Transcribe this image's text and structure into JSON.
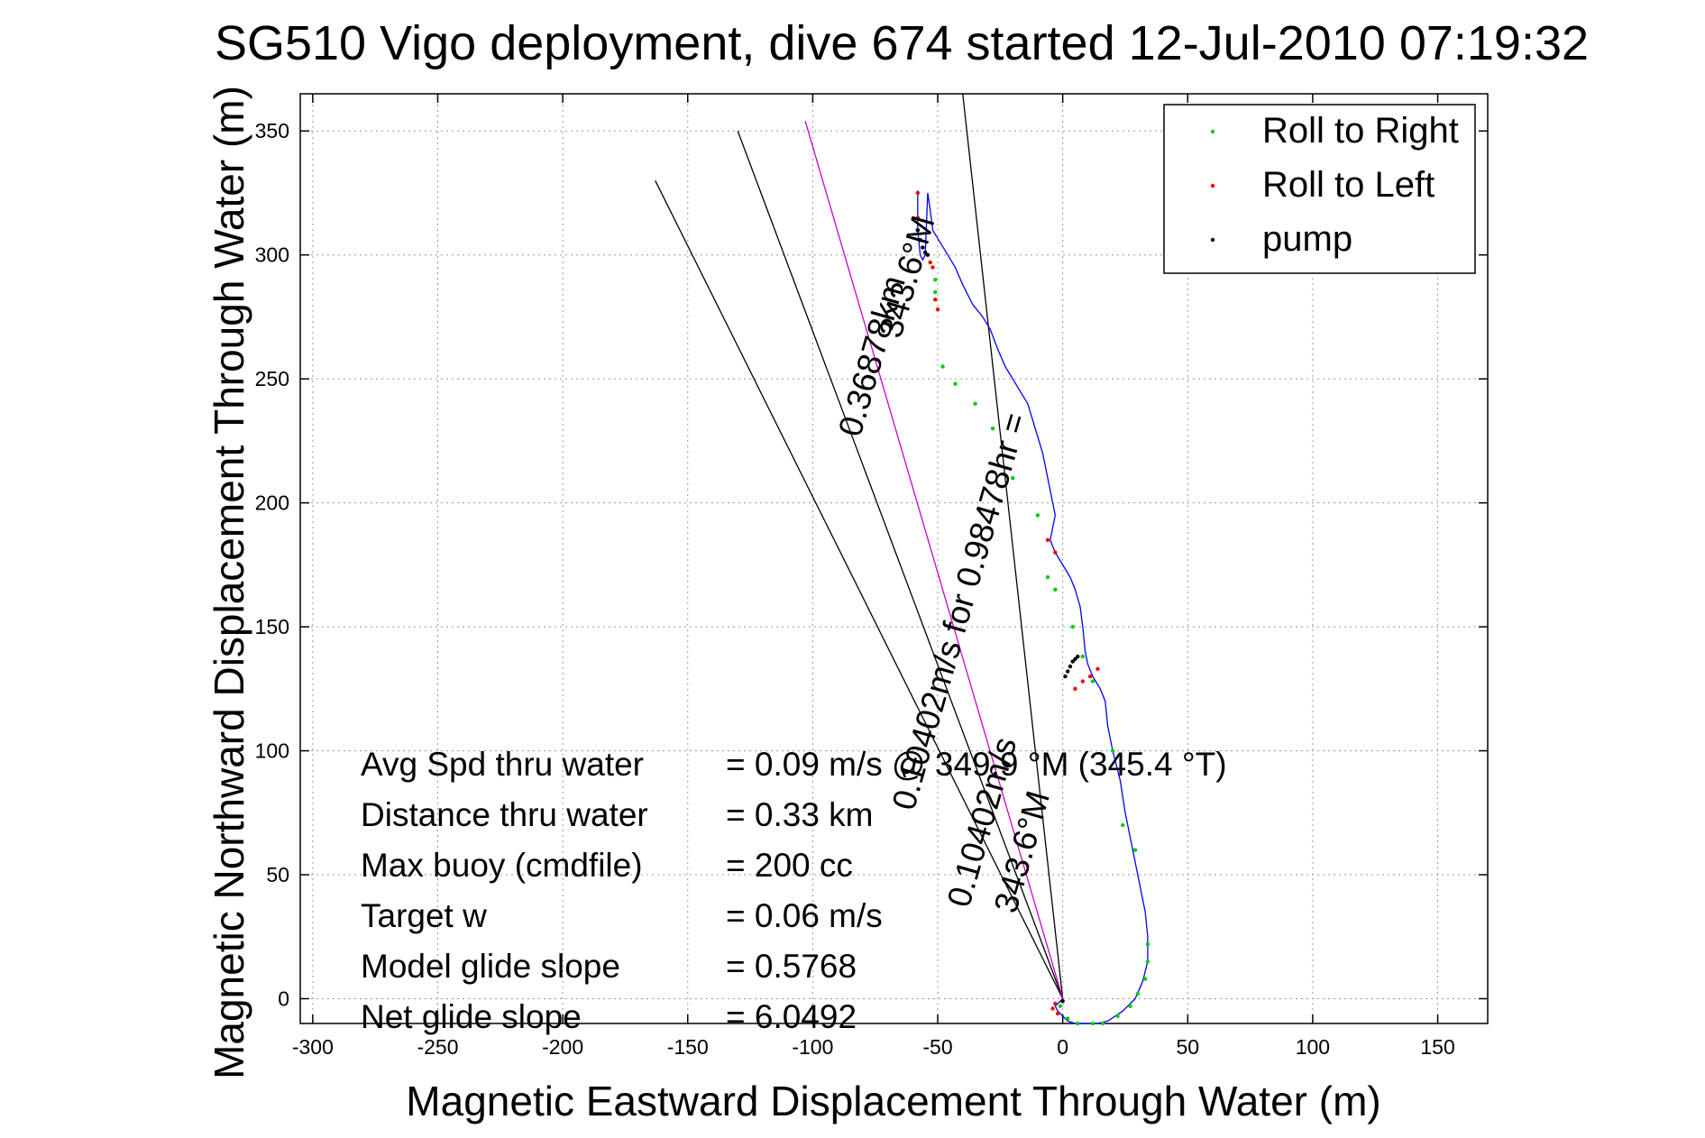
{
  "chart_data": {
    "type": "line",
    "title": "SG510 Vigo deployment, dive 674 started 12-Jul-2010 07:19:32",
    "xlabel": "Magnetic Eastward Displacement Through Water (m)",
    "ylabel": "Magnetic Northward Displacement Through Water (m)",
    "xlim": [
      -305,
      170
    ],
    "ylim": [
      -10,
      365
    ],
    "xticks": [
      -300,
      -250,
      -200,
      -150,
      -100,
      -50,
      0,
      50,
      100,
      150
    ],
    "yticks": [
      0,
      50,
      100,
      150,
      200,
      250,
      300,
      350
    ],
    "grid": true,
    "legend_position": "top-right",
    "legend": [
      {
        "label": "Roll to Right",
        "color": "#00cc00"
      },
      {
        "label": "Roll to Left",
        "color": "#ff0000"
      },
      {
        "label": "pump",
        "color": "#000000"
      }
    ],
    "track": {
      "color": "#0000ff",
      "x": [
        0,
        -3,
        -2,
        0,
        2,
        5,
        10,
        14,
        18,
        24,
        29,
        32,
        34,
        34,
        33,
        31,
        29,
        27,
        25,
        23,
        20,
        18,
        17,
        15,
        12,
        10,
        9,
        8,
        7,
        5,
        3,
        0,
        -3,
        -5,
        -4,
        -3,
        -4,
        -6,
        -8,
        -11,
        -14,
        -17,
        -20,
        -23,
        -26,
        -29,
        -32,
        -36,
        -40,
        -43,
        -46,
        -49,
        -52,
        -53,
        -54,
        -55,
        -56,
        -57,
        -58,
        -58,
        -58
      ],
      "y": [
        0,
        -3,
        -5,
        -7,
        -9,
        -10,
        -10,
        -10,
        -9,
        -5,
        0,
        7,
        15,
        25,
        35,
        45,
        55,
        65,
        75,
        88,
        100,
        110,
        120,
        125,
        130,
        135,
        140,
        150,
        158,
        165,
        170,
        175,
        180,
        185,
        190,
        195,
        200,
        210,
        220,
        230,
        240,
        245,
        250,
        255,
        262,
        270,
        275,
        280,
        288,
        295,
        300,
        305,
        310,
        318,
        325,
        300,
        298,
        300,
        310,
        318,
        326
      ]
    },
    "roll_right": {
      "color": "#00cc00",
      "x": [
        -1,
        2,
        6,
        12,
        16,
        22,
        27,
        30,
        33,
        34,
        34,
        29,
        24,
        20,
        12,
        8,
        4,
        -3,
        -6,
        -10,
        -20,
        -28,
        -35,
        -43,
        -48,
        -50,
        -51,
        -51
      ],
      "y": [
        -3,
        -8,
        -10,
        -10,
        -10,
        -7,
        -3,
        2,
        8,
        15,
        22,
        60,
        70,
        100,
        128,
        138,
        150,
        165,
        170,
        195,
        210,
        230,
        240,
        248,
        255,
        278,
        285,
        290
      ]
    },
    "roll_left": {
      "color": "#ff0000",
      "x": [
        -3,
        -4,
        -2,
        5,
        8,
        11,
        14,
        -3,
        -6,
        -50,
        -51,
        -52,
        -53,
        -58,
        -58,
        -58
      ],
      "y": [
        -2,
        -4,
        -6,
        125,
        128,
        130,
        133,
        180,
        185,
        278,
        282,
        295,
        297,
        310,
        315,
        325
      ]
    },
    "pump": {
      "color": "#000000",
      "x": [
        0,
        1,
        2,
        3,
        4,
        5,
        6,
        -54,
        -55,
        -56,
        -57,
        -58
      ],
      "y": [
        -1,
        130,
        132,
        134,
        136,
        137,
        138,
        300,
        301,
        303,
        306,
        310
      ]
    },
    "lines": [
      {
        "name": "",
        "color": "#000000",
        "x": [
          0,
          -130
        ],
        "y": [
          0,
          350
        ]
      },
      {
        "name": "",
        "color": "#000000",
        "x": [
          0,
          -40
        ],
        "y": [
          0,
          365
        ]
      },
      {
        "name": "",
        "color": "#000000",
        "x": [
          0,
          -163
        ],
        "y": [
          0,
          330
        ]
      },
      {
        "name": "",
        "color": "#cc00cc",
        "x": [
          0,
          -103
        ],
        "y": [
          0,
          354
        ]
      }
    ],
    "annotations": [
      {
        "text": "0.36878km",
        "x": -72,
        "y": 258,
        "rotate": -74
      },
      {
        "text": "343.6°M",
        "x": -58,
        "y": 290,
        "rotate": -74
      },
      {
        "text": "0.10402m/s for 0.98478hr =",
        "x": -37,
        "y": 155,
        "rotate": -74
      },
      {
        "text": "0.10402m/s",
        "x": -28,
        "y": 70,
        "rotate": -74
      },
      {
        "text": "343.6°M",
        "x": -12,
        "y": 58,
        "rotate": -74
      }
    ],
    "stats": [
      {
        "label": "Avg Spd thru water",
        "value": "=  0.09 m/s @ 349.9  °M (345.4 °T)"
      },
      {
        "label": "Distance thru water",
        "value": "=  0.33 km"
      },
      {
        "label": "Max buoy (cmdfile)",
        "value": "= 200 cc"
      },
      {
        "label": "Target w",
        "value": "= 0.06 m/s"
      },
      {
        "label": "Model glide slope",
        "value": "= 0.5768"
      },
      {
        "label": "Net glide slope",
        "value": "= 6.0492"
      }
    ]
  }
}
